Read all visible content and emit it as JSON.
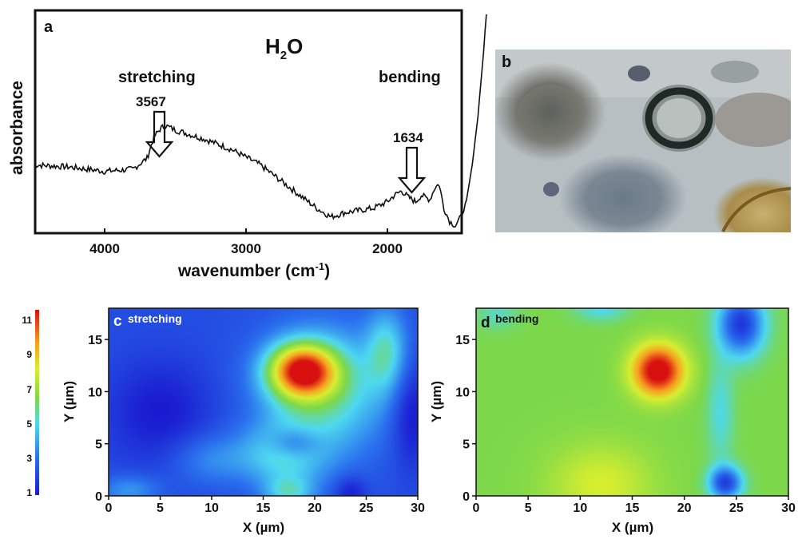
{
  "panel_a": {
    "letter": "a",
    "title_main": "H",
    "title_sub": "2",
    "title_tail": "O",
    "stretching_label": "stretching",
    "bending_label": "bending",
    "peak1_value": "3567",
    "peak2_value": "1634",
    "xlabel_main": "wavenumber (cm",
    "xlabel_sup": "-1",
    "xlabel_tail": ")",
    "ylabel": "absorbance",
    "xticks": [
      "4000",
      "3000",
      "2000"
    ]
  },
  "panel_b": {
    "letter": "b"
  },
  "panel_c": {
    "letter": "c",
    "label": "stretching"
  },
  "panel_d": {
    "letter": "d",
    "label": "bending"
  },
  "colorbar": {
    "ticks": [
      "11",
      "9",
      "7",
      "5",
      "3",
      "1"
    ]
  },
  "map_axes": {
    "xlabel": "X (µm)",
    "ylabel": "Y (µm)",
    "xticks": [
      "0",
      "5",
      "10",
      "15",
      "20",
      "25",
      "30"
    ],
    "yticks": [
      "15",
      "10",
      "5",
      "0"
    ]
  },
  "colors": {
    "map_low": "#1a2fd8",
    "map_mid": "#7cd84a",
    "map_high": "#e02010",
    "spectrum": "#111111"
  },
  "chart_data": [
    {
      "type": "line",
      "title": "H2O",
      "xlabel": "wavenumber (cm-1)",
      "ylabel": "absorbance",
      "xlim": [
        4500,
        1250
      ],
      "x": [
        4500,
        4250,
        4000,
        3800,
        3700,
        3650,
        3600,
        3567,
        3500,
        3300,
        3100,
        2900,
        2700,
        2500,
        2400,
        2300,
        2100,
        2000,
        1950,
        1900,
        1850,
        1800,
        1760,
        1700,
        1660,
        1634,
        1600,
        1560,
        1520,
        1480,
        1440,
        1400,
        1360,
        1320,
        1300
      ],
      "values": [
        0.3,
        0.29,
        0.27,
        0.28,
        0.33,
        0.43,
        0.47,
        0.48,
        0.46,
        0.42,
        0.37,
        0.3,
        0.2,
        0.1,
        0.06,
        0.08,
        0.1,
        0.13,
        0.16,
        0.18,
        0.15,
        0.13,
        0.16,
        0.14,
        0.2,
        0.21,
        0.1,
        0.04,
        0.02,
        0.06,
        0.14,
        0.3,
        0.52,
        0.82,
        1.0
      ],
      "annotations": [
        {
          "text": "stretching",
          "x": 3567
        },
        {
          "text": "3567",
          "x": 3567
        },
        {
          "text": "bending",
          "x": 1634
        },
        {
          "text": "1634",
          "x": 1634
        }
      ]
    },
    {
      "type": "heatmap",
      "title": "stretching",
      "xlabel": "X (µm)",
      "ylabel": "Y (µm)",
      "xlim": [
        0,
        30
      ],
      "ylim": [
        0,
        18
      ],
      "zlim": [
        1,
        11
      ],
      "base": 2.2,
      "blobs": [
        {
          "x": 18.8,
          "y": 12,
          "amp": 7.5,
          "sx": 3.3,
          "sy": 2.6
        },
        {
          "x": 21,
          "y": 10,
          "amp": 3.2,
          "sx": 6,
          "sy": 6
        },
        {
          "x": 17,
          "y": 4,
          "amp": 2.6,
          "sx": 4,
          "sy": 3
        },
        {
          "x": 10,
          "y": 3.5,
          "amp": 1.3,
          "sx": 4,
          "sy": 2.5
        },
        {
          "x": 2,
          "y": 0.5,
          "amp": 1.5,
          "sx": 3,
          "sy": 1.5
        },
        {
          "x": 17.5,
          "y": 0.3,
          "amp": 2.3,
          "sx": 2.5,
          "sy": 1.5
        },
        {
          "x": 27,
          "y": 14,
          "amp": 2.5,
          "sx": 2,
          "sy": 4
        },
        {
          "x": 5,
          "y": 8,
          "amp": -1.2,
          "sx": 5,
          "sy": 5
        },
        {
          "x": 18,
          "y": 5,
          "amp": -2.0,
          "sx": 2.5,
          "sy": 1.5
        },
        {
          "x": 29.5,
          "y": 8,
          "amp": -1.5,
          "sx": 2,
          "sy": 5
        },
        {
          "x": 23.5,
          "y": 0.3,
          "amp": -1.2,
          "sx": 1.5,
          "sy": 1.5
        }
      ]
    },
    {
      "type": "heatmap",
      "title": "bending",
      "xlabel": "X (µm)",
      "ylabel": "Y (µm)",
      "xlim": [
        0,
        30
      ],
      "ylim": [
        0,
        18
      ],
      "zlim": [
        1,
        11
      ],
      "base": 6.2,
      "blobs": [
        {
          "x": 17.5,
          "y": 12,
          "amp": 5.5,
          "sx": 2.5,
          "sy": 2.5
        },
        {
          "x": 12,
          "y": 1,
          "amp": 1.6,
          "sx": 5,
          "sy": 4
        },
        {
          "x": 25.5,
          "y": 16.5,
          "amp": -4.5,
          "sx": 2.2,
          "sy": 3
        },
        {
          "x": 24,
          "y": 1.2,
          "amp": -4.2,
          "sx": 1.6,
          "sy": 1.6
        },
        {
          "x": 23.5,
          "y": 8,
          "amp": -1.3,
          "sx": 1.3,
          "sy": 5
        },
        {
          "x": 12,
          "y": 18,
          "amp": -1.4,
          "sx": 2.5,
          "sy": 1.2
        },
        {
          "x": 2,
          "y": 17.5,
          "amp": -1.0,
          "sx": 2,
          "sy": 1.5
        }
      ]
    }
  ]
}
